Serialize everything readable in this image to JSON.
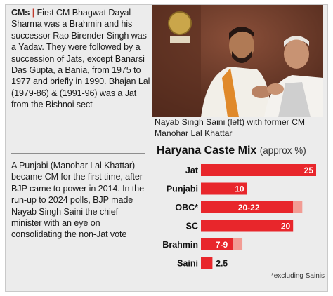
{
  "left_column": {
    "cms_tag": "CMs",
    "cms_separator": "|",
    "cms_text": "First CM Bhagwat Dayal Sharma was a Brahmin and his successor Rao Birender Singh was a Yadav. They were followed by a succession of Jats, except Banarsi Das Gupta, a Bania, from 1975 to 1977 and briefly in 1990. Bhajan Lal (1979-86) & (1991-96) was a Jat from the Bishnoi sect",
    "punjabi_text": "A Punjabi (Manohar Lal Khattar) became CM for the first time, after BJP came to power in 2014. In the run-up to 2024 polls, BJP made Nayab Singh Saini the chief minister with an eye on consolidating the non-Jat vote"
  },
  "photo": {
    "caption": "Nayab Singh Saini (left) with former CM Manohar Lal Khattar"
  },
  "chart_data": {
    "type": "bar",
    "orientation": "horizontal",
    "title": "Haryana Caste Mix",
    "subtitle": "(approx %)",
    "categories": [
      "Jat",
      "Punjabi",
      "OBC*",
      "SC",
      "Brahmin",
      "Saini"
    ],
    "values": [
      25,
      10,
      21,
      20,
      8,
      2.5
    ],
    "range_values": [
      null,
      null,
      [
        20,
        22
      ],
      null,
      [
        7,
        9
      ],
      null
    ],
    "data_labels": [
      "25",
      "10",
      "20-22",
      "20",
      "7-9",
      "2.5"
    ],
    "xlim": [
      0,
      25
    ],
    "grid": false,
    "footnote": "*excluding Sainis",
    "colors": {
      "bar": "#e8262b",
      "range_ext": "#f29c94",
      "label_inside": "#ffffff",
      "label_outside": "#111111"
    }
  }
}
